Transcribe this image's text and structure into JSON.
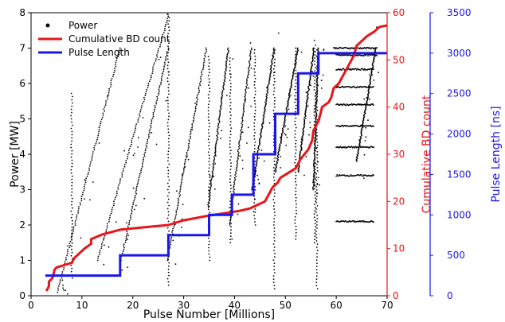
{
  "chart_data": {
    "type": "line",
    "xlabel": "Pulse Number [Millions]",
    "xlim": [
      0,
      70
    ],
    "xticks": [
      "0",
      "10",
      "20",
      "30",
      "40",
      "50",
      "60",
      "70"
    ],
    "axes": {
      "power": {
        "label": "Power [MW]",
        "lim": [
          0,
          8
        ],
        "ticks": [
          "0",
          "1",
          "2",
          "3",
          "4",
          "5",
          "6",
          "7",
          "8"
        ],
        "color": "#000000"
      },
      "bd": {
        "label": "Cumulative BD count",
        "lim": [
          0,
          60
        ],
        "ticks": [
          "0",
          "10",
          "20",
          "30",
          "40",
          "50",
          "60"
        ],
        "color": "#e8151b"
      },
      "pulse": {
        "label": "Pulse Length [ns]",
        "lim": [
          0,
          3500
        ],
        "ticks": [
          "0",
          "500",
          "1000",
          "1500",
          "2000",
          "2500",
          "3000",
          "3500"
        ],
        "color": "#1b17e8"
      }
    },
    "legend": {
      "position": "top-left",
      "entries": [
        "Power",
        "Cumulative BD count",
        "Pulse Length"
      ]
    },
    "series": [
      {
        "name": "Power",
        "kind": "scatter",
        "axis": "power",
        "color": "#000000",
        "ramps": [
          [
            5.2,
            0.1,
            17.5,
            7.0
          ],
          [
            13.0,
            1.0,
            27.0,
            7.9
          ],
          [
            17.5,
            0.9,
            27.0,
            7.0
          ],
          [
            26.8,
            1.0,
            34.5,
            7.0
          ],
          [
            34.8,
            2.5,
            38.8,
            7.0
          ],
          [
            39.0,
            2.0,
            43.3,
            7.0
          ],
          [
            43.5,
            3.0,
            47.8,
            7.0
          ],
          [
            48.0,
            3.5,
            52.5,
            7.0
          ],
          [
            52.5,
            3.5,
            55.6,
            7.0
          ],
          [
            55.5,
            3.0,
            56.5,
            7.0
          ],
          [
            64.0,
            3.8,
            67.8,
            7.0
          ]
        ],
        "plateaus": [
          [
            59.5,
            68.0,
            7.0
          ],
          [
            60.0,
            68.0,
            6.8
          ],
          [
            60.0,
            67.5,
            6.4
          ],
          [
            60.0,
            67.5,
            5.9
          ],
          [
            60.0,
            67.5,
            5.4
          ],
          [
            60.0,
            67.5,
            4.8
          ],
          [
            60.0,
            67.5,
            4.2
          ],
          [
            60.0,
            67.5,
            3.4
          ],
          [
            60.0,
            67.5,
            2.1
          ]
        ],
        "columns": [
          [
            8.0,
            0.5,
            5.8
          ],
          [
            27.0,
            0.3,
            8.0
          ],
          [
            35.0,
            1.0,
            6.8
          ],
          [
            39.2,
            1.5,
            6.8
          ],
          [
            44.0,
            2.0,
            7.0
          ],
          [
            47.8,
            0.2,
            7.0
          ],
          [
            52.0,
            1.6,
            7.0
          ],
          [
            55.8,
            1.5,
            7.1
          ],
          [
            56.2,
            0.2,
            7.0
          ]
        ]
      },
      {
        "name": "Cumulative BD count",
        "kind": "step-line",
        "axis": "bd",
        "color": "#e8151b",
        "points": [
          [
            3.0,
            1
          ],
          [
            3.5,
            2
          ],
          [
            3.5,
            3
          ],
          [
            4.0,
            3.5
          ],
          [
            4.3,
            4
          ],
          [
            4.6,
            5.5
          ],
          [
            5.0,
            6
          ],
          [
            8.0,
            7
          ],
          [
            8.5,
            8
          ],
          [
            9.5,
            9
          ],
          [
            10.5,
            10
          ],
          [
            11.8,
            11
          ],
          [
            11.8,
            12
          ],
          [
            14.0,
            13
          ],
          [
            17.5,
            14
          ],
          [
            22.0,
            14.5
          ],
          [
            27.0,
            15
          ],
          [
            30.0,
            16
          ],
          [
            35.0,
            17
          ],
          [
            38.0,
            17.5
          ],
          [
            41.0,
            18
          ],
          [
            43.0,
            18.5
          ],
          [
            44.0,
            19
          ],
          [
            46.0,
            20
          ],
          [
            46.5,
            21
          ],
          [
            47.5,
            23
          ],
          [
            48.5,
            24
          ],
          [
            49.0,
            25
          ],
          [
            50.5,
            26
          ],
          [
            52.0,
            27
          ],
          [
            52.5,
            28
          ],
          [
            53.0,
            29
          ],
          [
            54.5,
            31
          ],
          [
            55.3,
            33
          ],
          [
            55.5,
            35
          ],
          [
            56.5,
            37
          ],
          [
            57.0,
            39
          ],
          [
            57.2,
            40
          ],
          [
            58.5,
            41
          ],
          [
            59.0,
            42
          ],
          [
            59.5,
            44
          ],
          [
            60.5,
            45
          ],
          [
            61.0,
            46
          ],
          [
            62.0,
            48
          ],
          [
            62.5,
            49
          ],
          [
            63.5,
            51
          ],
          [
            64.0,
            53
          ],
          [
            65.0,
            54
          ],
          [
            66.0,
            55
          ],
          [
            67.5,
            56
          ],
          [
            68.5,
            57
          ],
          [
            70.0,
            57.3
          ]
        ]
      },
      {
        "name": "Pulse Length",
        "kind": "step",
        "axis": "pulse",
        "color": "#1b17e8",
        "points": [
          [
            2.8,
            250
          ],
          [
            17.5,
            250
          ],
          [
            17.5,
            500
          ],
          [
            27.0,
            500
          ],
          [
            27.0,
            750
          ],
          [
            35.0,
            750
          ],
          [
            35.0,
            1000
          ],
          [
            39.5,
            1000
          ],
          [
            39.5,
            1250
          ],
          [
            43.7,
            1250
          ],
          [
            43.7,
            1750
          ],
          [
            48.0,
            1750
          ],
          [
            48.0,
            2250
          ],
          [
            52.5,
            2250
          ],
          [
            52.5,
            2750
          ],
          [
            56.5,
            2750
          ],
          [
            56.5,
            3000
          ],
          [
            70.0,
            3000
          ]
        ]
      }
    ]
  }
}
